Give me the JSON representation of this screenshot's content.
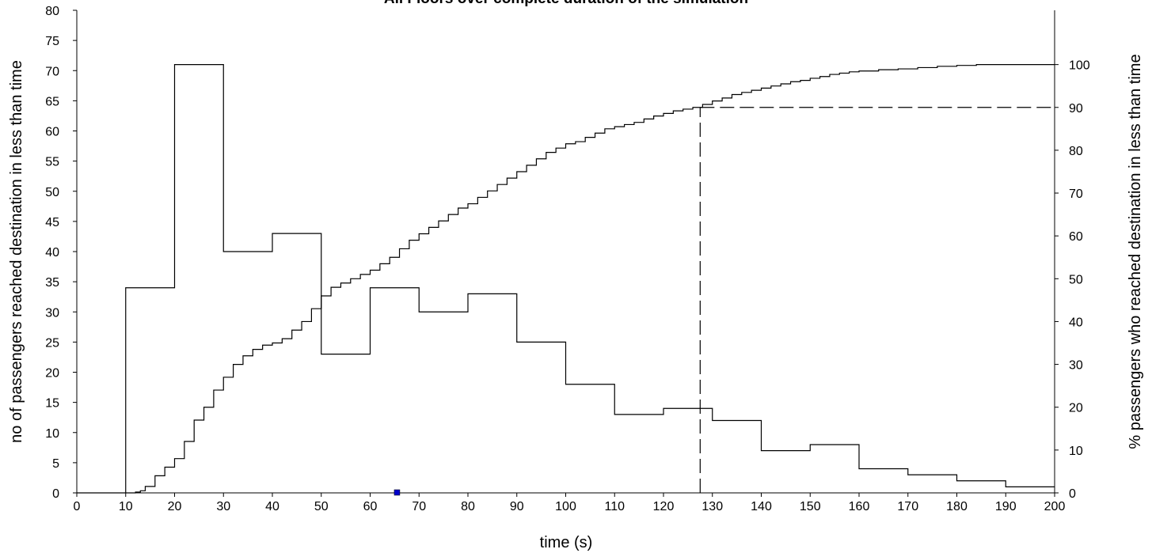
{
  "chart_data": {
    "type": "line",
    "title": "All Floors over complete duration of the simulation",
    "xlabel": "time (s)",
    "ylabel": "no of passengers reached destination in less than time",
    "y2label": "% passengers who reached destination in less than time",
    "xlim": [
      0,
      200
    ],
    "ylim": [
      0,
      80
    ],
    "y2lim": [
      0,
      100
    ],
    "x_ticks": [
      0,
      10,
      20,
      30,
      40,
      50,
      60,
      70,
      80,
      90,
      100,
      110,
      120,
      130,
      140,
      150,
      160,
      170,
      180,
      190,
      200
    ],
    "y_ticks": [
      0,
      5,
      10,
      15,
      20,
      25,
      30,
      35,
      40,
      45,
      50,
      55,
      60,
      65,
      70,
      75,
      80
    ],
    "y2_ticks": [
      0,
      10,
      20,
      30,
      40,
      50,
      60,
      70,
      80,
      90,
      100
    ],
    "grid": false,
    "legend": "none",
    "series": [
      {
        "type": "step",
        "axis": "left",
        "bins": [
          0,
          10,
          20,
          30,
          40,
          50,
          60,
          70,
          80,
          90,
          100,
          110,
          120,
          130,
          140,
          150,
          160,
          170,
          180,
          190
        ],
        "bin_width": 10,
        "values": [
          0,
          34,
          71,
          40,
          43,
          23,
          34,
          30,
          33,
          25,
          18,
          13,
          14,
          12,
          7,
          8,
          4,
          3,
          2,
          1
        ]
      },
      {
        "type": "cumulative",
        "axis": "right",
        "x": [
          10,
          12,
          13,
          14,
          16,
          18,
          20,
          22,
          24,
          26,
          28,
          30,
          32,
          34,
          36,
          38,
          40,
          42,
          44,
          46,
          48,
          50,
          52,
          54,
          56,
          58,
          60,
          62,
          64,
          66,
          68,
          70,
          72,
          74,
          76,
          78,
          80,
          82,
          84,
          86,
          88,
          90,
          92,
          94,
          96,
          98,
          100,
          102,
          104,
          106,
          108,
          110,
          112,
          114,
          116,
          118,
          120,
          122,
          124,
          126,
          128,
          130,
          132,
          134,
          136,
          138,
          140,
          142,
          144,
          146,
          148,
          150,
          152,
          154,
          156,
          158,
          160,
          164,
          168,
          172,
          176,
          180,
          184,
          188,
          192,
          196,
          200
        ],
        "values": [
          0,
          0.2,
          0.5,
          1.5,
          4,
          6,
          8,
          12,
          17,
          20,
          24,
          27,
          30,
          32,
          33.5,
          34.5,
          35,
          36,
          38,
          40,
          43,
          46,
          48,
          49,
          50,
          51,
          52,
          53.5,
          55,
          57,
          59,
          60.5,
          62,
          63.5,
          65,
          66.5,
          67.5,
          69,
          70.5,
          72,
          73.5,
          75,
          76.5,
          78,
          79.5,
          80.5,
          81.5,
          82,
          83,
          84,
          85,
          85.5,
          86,
          86.5,
          87.3,
          88,
          88.6,
          89.2,
          89.6,
          90,
          90.7,
          91.5,
          92.2,
          93,
          93.5,
          94,
          94.5,
          95,
          95.5,
          96,
          96.3,
          96.8,
          97.2,
          97.7,
          98,
          98.3,
          98.5,
          98.8,
          99,
          99.3,
          99.6,
          99.8,
          100,
          100,
          100,
          100,
          100
        ]
      }
    ],
    "marker_lines": [
      {
        "style": "dashed",
        "axis": "right",
        "x_from": 127.5,
        "x_to": 200,
        "y": 90
      },
      {
        "style": "dashed",
        "axis": "right",
        "x": 127.5,
        "y_from": 0,
        "y_to": 90
      }
    ],
    "point_marker": {
      "x": 65.5,
      "y": 0,
      "color": "#0000cc"
    },
    "colors": {
      "line": "#000000",
      "marker": "#0000cc",
      "background": "#ffffff"
    }
  }
}
